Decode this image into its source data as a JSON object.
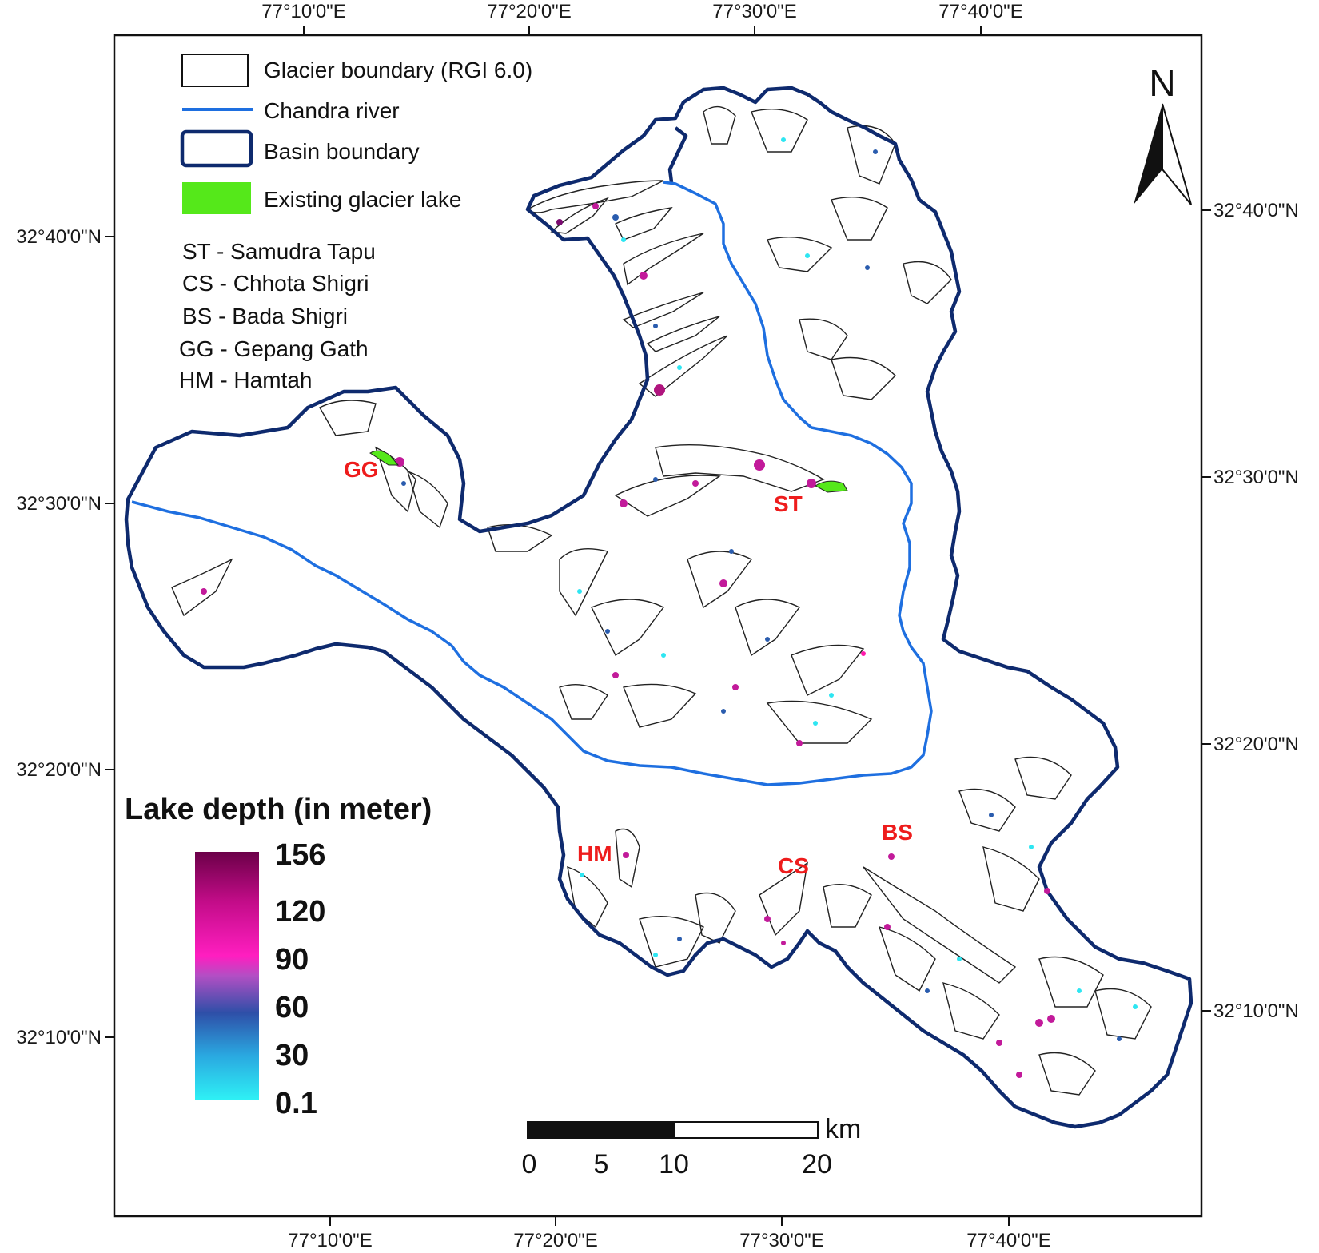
{
  "axes": {
    "top_longitudes": [
      "77°10'0\"E",
      "77°20'0\"E",
      "77°30'0\"E",
      "77°40'0\"E"
    ],
    "bottom_longitudes": [
      "77°10'0\"E",
      "77°20'0\"E",
      "77°30'0\"E",
      "77°40'0\"E"
    ],
    "left_latitudes": [
      "32°40'0\"N",
      "32°30'0\"N",
      "32°20'0\"N",
      "32°10'0\"N"
    ],
    "right_latitudes": [
      "32°40'0\"N",
      "32°30'0\"N",
      "32°20'0\"N",
      "32°10'0\"N"
    ]
  },
  "legend": {
    "glacier_boundary": "Glacier boundary (RGI 6.0)",
    "river": "Chandra river",
    "basin_boundary": "Basin boundary",
    "existing_lake": "Existing glacier lake"
  },
  "abbreviations": [
    "ST - Samudra Tapu",
    "CS - Chhota Shigri",
    "BS - Bada Shigri",
    "GG - Gepang Gath",
    "HM - Hamtah"
  ],
  "glacier_labels": {
    "gg": "GG",
    "st": "ST",
    "hm": "HM",
    "cs": "CS",
    "bs": "BS"
  },
  "north_arrow": {
    "label": "N"
  },
  "depth_scale": {
    "title": "Lake depth (in meter)",
    "ticks": [
      "156",
      "120",
      "90",
      "60",
      "30",
      "0.1"
    ]
  },
  "scale_bar": {
    "unit": "km",
    "ticks": [
      "0",
      "5",
      "10",
      "20"
    ]
  },
  "colors": {
    "basin": "#0e2a6e",
    "river": "#1e6fe0",
    "existing_lake": "#55e81a",
    "label_red": "#ee1c1c",
    "depth_low": "#2ee6f2",
    "depth_mid": "#2a5cae",
    "depth_high": "#ff1aab",
    "depth_max": "#6e0045"
  }
}
